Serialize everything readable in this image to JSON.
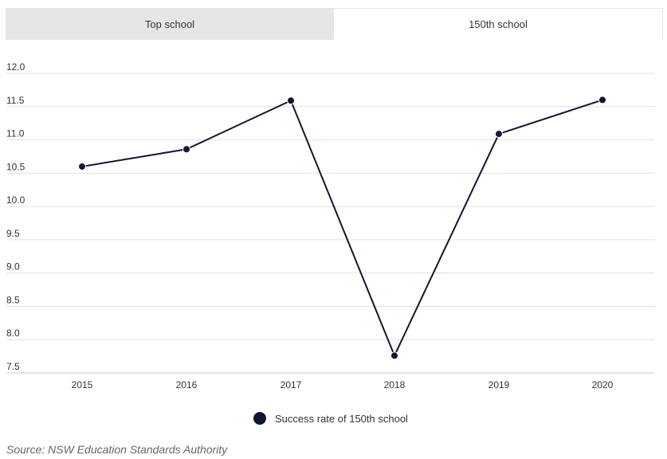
{
  "tabs": [
    {
      "label": "Top school",
      "active": false
    },
    {
      "label": "150th school",
      "active": true
    }
  ],
  "chart_data": {
    "type": "line",
    "title": "",
    "xlabel": "",
    "ylabel": "",
    "categories": [
      "2015",
      "2016",
      "2017",
      "2018",
      "2019",
      "2020"
    ],
    "series": [
      {
        "name": "Success rate of 150th school",
        "values": [
          10.6,
          10.86,
          11.59,
          7.76,
          11.09,
          11.6
        ],
        "color": "#101631"
      }
    ],
    "ylim": [
      7.5,
      12.0
    ],
    "yticks": [
      "12.0",
      "11.5",
      "11.0",
      "10.5",
      "10.0",
      "9.5",
      "9.0",
      "8.5",
      "8.0",
      "7.5"
    ],
    "grid": true,
    "legend_position": "bottom-center"
  },
  "legend": {
    "label": "Success rate of 150th school"
  },
  "source": "Source: NSW Education Standards Authority"
}
